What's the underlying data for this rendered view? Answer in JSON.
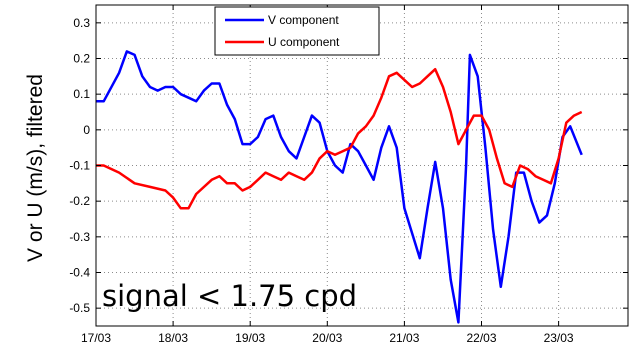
{
  "chart_data": {
    "type": "line",
    "ylabel": "V or U (m/s), filtered",
    "xlim": [
      0,
      6.9
    ],
    "ylim": [
      -0.55,
      0.35
    ],
    "x_ticks": [
      0,
      1,
      2,
      3,
      4,
      5,
      6
    ],
    "x_tick_labels": [
      "17/03",
      "18/03",
      "19/03",
      "20/03",
      "21/03",
      "22/03",
      "23/03"
    ],
    "y_ticks": [
      -0.5,
      -0.4,
      -0.3,
      -0.2,
      -0.1,
      0,
      0.1,
      0.2,
      0.3
    ],
    "y_tick_labels": [
      "-0.5",
      "-0.4",
      "-0.3",
      "-0.2",
      "-0.1",
      "0",
      "0.1",
      "0.2",
      "0.3"
    ],
    "grid": true,
    "legend_position": "top-center",
    "annotation": "signal < 1.75 cpd",
    "series": [
      {
        "name": "V component",
        "color": "#0000ff",
        "points": [
          [
            0.0,
            0.08
          ],
          [
            0.1,
            0.08
          ],
          [
            0.3,
            0.16
          ],
          [
            0.4,
            0.22
          ],
          [
            0.5,
            0.21
          ],
          [
            0.6,
            0.15
          ],
          [
            0.7,
            0.12
          ],
          [
            0.8,
            0.11
          ],
          [
            0.9,
            0.12
          ],
          [
            1.0,
            0.12
          ],
          [
            1.1,
            0.1
          ],
          [
            1.2,
            0.09
          ],
          [
            1.3,
            0.08
          ],
          [
            1.4,
            0.11
          ],
          [
            1.5,
            0.13
          ],
          [
            1.6,
            0.13
          ],
          [
            1.7,
            0.07
          ],
          [
            1.8,
            0.03
          ],
          [
            1.9,
            -0.04
          ],
          [
            2.0,
            -0.04
          ],
          [
            2.1,
            -0.02
          ],
          [
            2.2,
            0.03
          ],
          [
            2.3,
            0.04
          ],
          [
            2.4,
            -0.02
          ],
          [
            2.5,
            -0.06
          ],
          [
            2.6,
            -0.08
          ],
          [
            2.7,
            -0.02
          ],
          [
            2.8,
            0.04
          ],
          [
            2.9,
            0.02
          ],
          [
            3.0,
            -0.06
          ],
          [
            3.1,
            -0.1
          ],
          [
            3.2,
            -0.12
          ],
          [
            3.3,
            -0.04
          ],
          [
            3.4,
            -0.06
          ],
          [
            3.5,
            -0.1
          ],
          [
            3.6,
            -0.14
          ],
          [
            3.7,
            -0.05
          ],
          [
            3.8,
            0.01
          ],
          [
            3.9,
            -0.05
          ],
          [
            4.0,
            -0.22
          ],
          [
            4.1,
            -0.29
          ],
          [
            4.2,
            -0.36
          ],
          [
            4.3,
            -0.22
          ],
          [
            4.4,
            -0.09
          ],
          [
            4.5,
            -0.22
          ],
          [
            4.6,
            -0.42
          ],
          [
            4.7,
            -0.54
          ],
          [
            4.8,
            -0.1
          ],
          [
            4.85,
            0.21
          ],
          [
            4.95,
            0.15
          ],
          [
            5.05,
            -0.05
          ],
          [
            5.15,
            -0.28
          ],
          [
            5.25,
            -0.44
          ],
          [
            5.35,
            -0.3
          ],
          [
            5.45,
            -0.12
          ],
          [
            5.55,
            -0.12
          ],
          [
            5.65,
            -0.2
          ],
          [
            5.75,
            -0.26
          ],
          [
            5.85,
            -0.24
          ],
          [
            5.95,
            -0.15
          ],
          [
            6.05,
            -0.02
          ],
          [
            6.15,
            0.01
          ],
          [
            6.3,
            -0.07
          ]
        ]
      },
      {
        "name": "U component",
        "color": "#ff0000",
        "points": [
          [
            0.0,
            -0.1
          ],
          [
            0.1,
            -0.1
          ],
          [
            0.3,
            -0.12
          ],
          [
            0.5,
            -0.15
          ],
          [
            0.7,
            -0.16
          ],
          [
            0.9,
            -0.17
          ],
          [
            1.0,
            -0.19
          ],
          [
            1.1,
            -0.22
          ],
          [
            1.2,
            -0.22
          ],
          [
            1.3,
            -0.18
          ],
          [
            1.5,
            -0.14
          ],
          [
            1.6,
            -0.13
          ],
          [
            1.7,
            -0.15
          ],
          [
            1.8,
            -0.15
          ],
          [
            1.9,
            -0.17
          ],
          [
            2.0,
            -0.16
          ],
          [
            2.1,
            -0.14
          ],
          [
            2.2,
            -0.12
          ],
          [
            2.3,
            -0.13
          ],
          [
            2.4,
            -0.14
          ],
          [
            2.5,
            -0.12
          ],
          [
            2.6,
            -0.13
          ],
          [
            2.7,
            -0.14
          ],
          [
            2.8,
            -0.12
          ],
          [
            2.9,
            -0.08
          ],
          [
            3.0,
            -0.06
          ],
          [
            3.1,
            -0.07
          ],
          [
            3.2,
            -0.06
          ],
          [
            3.3,
            -0.05
          ],
          [
            3.4,
            -0.01
          ],
          [
            3.5,
            0.01
          ],
          [
            3.6,
            0.04
          ],
          [
            3.7,
            0.09
          ],
          [
            3.8,
            0.15
          ],
          [
            3.9,
            0.16
          ],
          [
            4.0,
            0.14
          ],
          [
            4.1,
            0.12
          ],
          [
            4.2,
            0.13
          ],
          [
            4.3,
            0.15
          ],
          [
            4.4,
            0.17
          ],
          [
            4.5,
            0.12
          ],
          [
            4.6,
            0.05
          ],
          [
            4.7,
            -0.04
          ],
          [
            4.8,
            0.0
          ],
          [
            4.9,
            0.04
          ],
          [
            5.0,
            0.04
          ],
          [
            5.1,
            0.0
          ],
          [
            5.2,
            -0.08
          ],
          [
            5.3,
            -0.15
          ],
          [
            5.4,
            -0.16
          ],
          [
            5.5,
            -0.1
          ],
          [
            5.6,
            -0.11
          ],
          [
            5.7,
            -0.13
          ],
          [
            5.8,
            -0.14
          ],
          [
            5.9,
            -0.15
          ],
          [
            6.0,
            -0.08
          ],
          [
            6.1,
            0.02
          ],
          [
            6.2,
            0.04
          ],
          [
            6.3,
            0.05
          ]
        ]
      }
    ]
  }
}
